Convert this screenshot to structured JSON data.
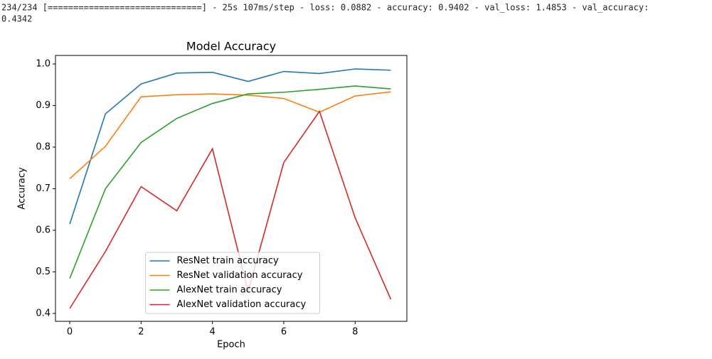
{
  "log": [
    "234/234 [==============================] - 25s 107ms/step - loss: 0.0882 - accuracy: 0.9402 - val_loss: 1.4853 - val_accuracy:",
    "0.4342"
  ],
  "chart_data": {
    "type": "line",
    "title": "Model Accuracy",
    "x_label": "Epoch",
    "y_label": "Accuracy",
    "x": [
      0,
      1,
      2,
      3,
      4,
      5,
      6,
      7,
      8,
      9
    ],
    "series": [
      {
        "name": "ResNet train accuracy",
        "color": "#1f77b4",
        "values": [
          0.615,
          0.88,
          0.952,
          0.978,
          0.98,
          0.958,
          0.982,
          0.977,
          0.988,
          0.985
        ]
      },
      {
        "name": "ResNet validation accuracy",
        "color": "#ff7f0e",
        "values": [
          0.724,
          0.802,
          0.921,
          0.926,
          0.928,
          0.925,
          0.917,
          0.884,
          0.923,
          0.933
        ]
      },
      {
        "name": "AlexNet train accuracy",
        "color": "#2ca02c",
        "values": [
          0.484,
          0.7,
          0.811,
          0.869,
          0.905,
          0.928,
          0.932,
          0.939,
          0.947,
          0.94
        ]
      },
      {
        "name": "AlexNet validation accuracy",
        "color": "#d62728",
        "values": [
          0.412,
          0.549,
          0.705,
          0.647,
          0.796,
          0.453,
          0.763,
          0.886,
          0.63,
          0.434
        ]
      }
    ],
    "xlim": [
      -0.4,
      9.45
    ],
    "xticks": [
      0,
      2,
      4,
      6,
      8
    ],
    "ylim": [
      0.381,
      1.0205
    ],
    "yticks": [
      {
        "value": 0.4,
        "label": "0.4"
      },
      {
        "value": 0.5,
        "label": "0.5"
      },
      {
        "value": 0.6,
        "label": "0.6"
      },
      {
        "value": 0.7,
        "label": "0.7"
      },
      {
        "value": 0.8,
        "label": "0.8"
      },
      {
        "value": 0.9,
        "label": "0.9"
      },
      {
        "value": 1.0,
        "label": "1.0"
      }
    ],
    "legend": "lower center"
  }
}
